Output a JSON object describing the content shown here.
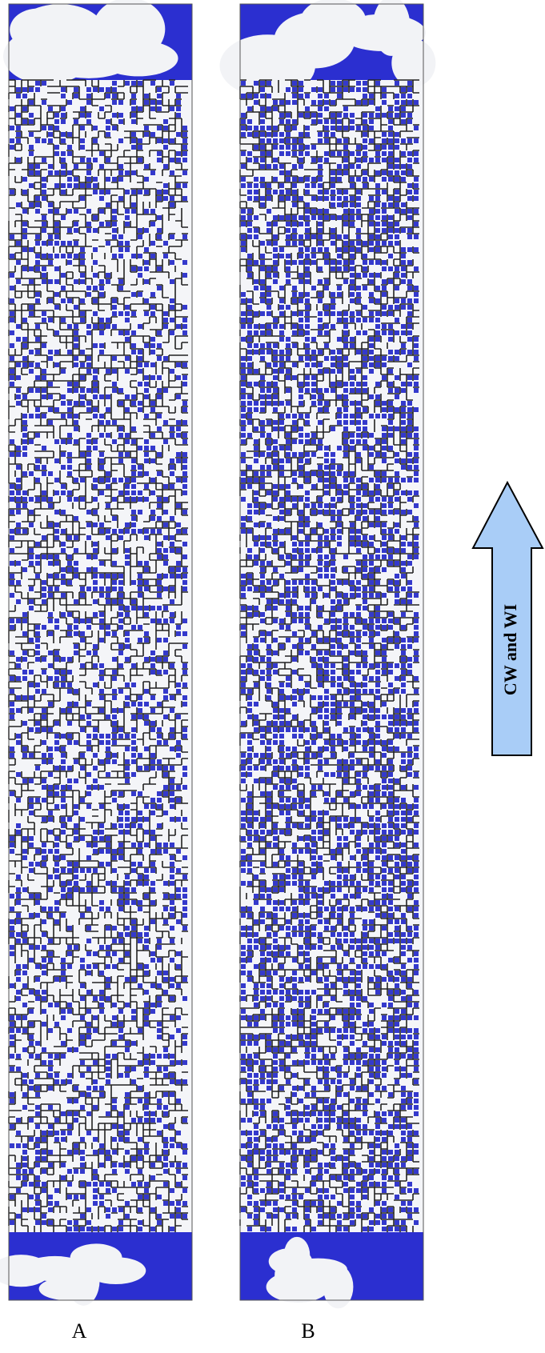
{
  "panels": [
    {
      "label": "A"
    },
    {
      "label": "B"
    }
  ],
  "arrow": {
    "label": "CW and WI"
  }
}
